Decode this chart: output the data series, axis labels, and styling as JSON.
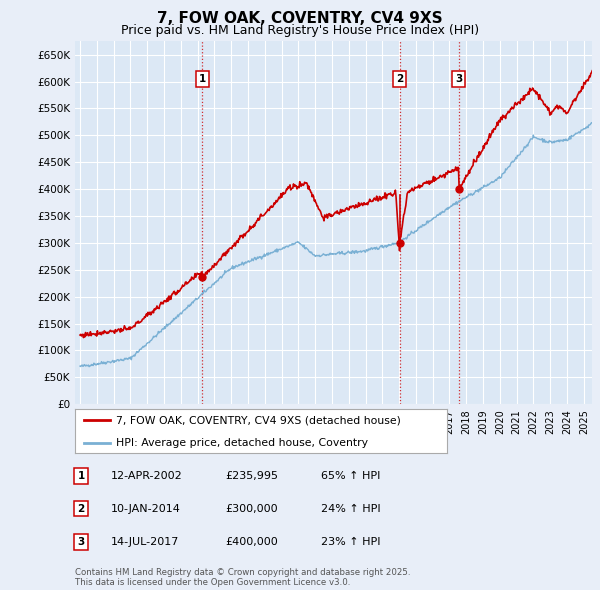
{
  "title": "7, FOW OAK, COVENTRY, CV4 9XS",
  "subtitle": "Price paid vs. HM Land Registry's House Price Index (HPI)",
  "title_fontsize": 11,
  "subtitle_fontsize": 9,
  "ylabel_ticks": [
    "£0",
    "£50K",
    "£100K",
    "£150K",
    "£200K",
    "£250K",
    "£300K",
    "£350K",
    "£400K",
    "£450K",
    "£500K",
    "£550K",
    "£600K",
    "£650K"
  ],
  "ylim": [
    0,
    675000
  ],
  "background_color": "#e8eef8",
  "plot_bg_color": "#dce8f5",
  "grid_color": "#ffffff",
  "legend_line1": "7, FOW OAK, COVENTRY, CV4 9XS (detached house)",
  "legend_line2": "HPI: Average price, detached house, Coventry",
  "red_color": "#cc0000",
  "blue_color": "#7ab0d4",
  "sale_markers": [
    {
      "label": "1",
      "date_x": 2002.27,
      "price": 235995
    },
    {
      "label": "2",
      "date_x": 2014.03,
      "price": 300000
    },
    {
      "label": "3",
      "date_x": 2017.54,
      "price": 400000
    }
  ],
  "vline_color": "#cc0000",
  "table_rows": [
    {
      "num": "1",
      "date": "12-APR-2002",
      "price": "£235,995",
      "hpi": "65% ↑ HPI"
    },
    {
      "num": "2",
      "date": "10-JAN-2014",
      "price": "£300,000",
      "hpi": "24% ↑ HPI"
    },
    {
      "num": "3",
      "date": "14-JUL-2017",
      "price": "£400,000",
      "hpi": "23% ↑ HPI"
    }
  ],
  "footnote": "Contains HM Land Registry data © Crown copyright and database right 2025.\nThis data is licensed under the Open Government Licence v3.0.",
  "xmin": 1995,
  "xmax": 2025.5
}
